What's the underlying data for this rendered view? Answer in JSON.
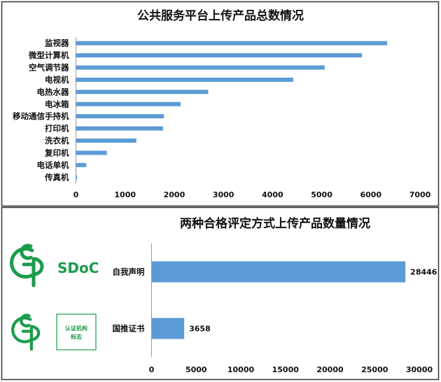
{
  "chart_data": [
    {
      "type": "bar",
      "orientation": "horizontal",
      "title": "公共服务平台上传产品总数情况",
      "categories": [
        "监视器",
        "微型计算机",
        "空气调节器",
        "电视机",
        "电热水器",
        "电冰箱",
        "移动通信手持机",
        "打印机",
        "洗衣机",
        "复印机",
        "电话单机",
        "传真机"
      ],
      "values": [
        6330,
        5820,
        5060,
        4420,
        2690,
        2130,
        1790,
        1770,
        1230,
        630,
        210,
        20
      ],
      "xlim": [
        0,
        7000
      ],
      "xticks": [
        0,
        1000,
        2000,
        3000,
        4000,
        5000,
        6000,
        7000
      ],
      "color": "#5b9bd5",
      "grid": false
    },
    {
      "type": "bar",
      "orientation": "horizontal",
      "title": "两种合格评定方式上传产品数量情况",
      "categories": [
        "自我声明",
        "国推证书"
      ],
      "values": [
        28446,
        3658
      ],
      "data_labels": [
        "28446",
        "3658"
      ],
      "xlim": [
        0,
        30000
      ],
      "xticks": [
        0,
        5000,
        10000,
        15000,
        20000,
        25000,
        30000
      ],
      "color": "#5b9bd5",
      "grid": false
    }
  ],
  "logos": {
    "sdoc_text": "SDoC",
    "cert_mark_line1": "认证机构",
    "cert_mark_line2": "标志",
    "logo_color": "#1a9c4a"
  }
}
